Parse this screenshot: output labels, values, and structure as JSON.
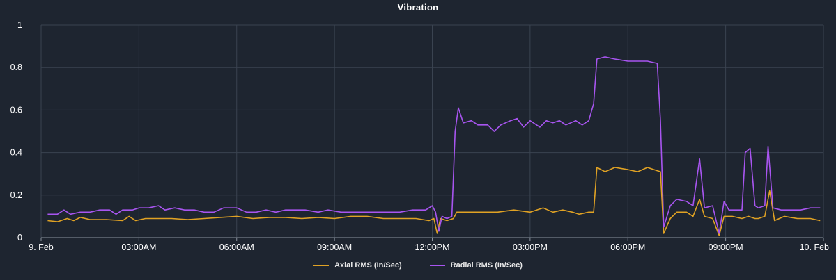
{
  "colors": {
    "background": "#1e2530",
    "grid": "#3a4350",
    "axial": "#e0a224",
    "radial": "#a855f0"
  },
  "chart_data": {
    "type": "line",
    "title": "Vibration",
    "xlabel": "",
    "ylabel": "",
    "x_unit": "hours since 9. Feb 00:00",
    "xlim": [
      0,
      24
    ],
    "ylim": [
      0,
      1
    ],
    "x_ticks": [
      {
        "value": 0,
        "label": "9. Feb"
      },
      {
        "value": 3,
        "label": "03:00AM"
      },
      {
        "value": 6,
        "label": "06:00AM"
      },
      {
        "value": 9,
        "label": "09:00AM"
      },
      {
        "value": 12,
        "label": "12:00PM"
      },
      {
        "value": 15,
        "label": "03:00PM"
      },
      {
        "value": 18,
        "label": "06:00PM"
      },
      {
        "value": 21,
        "label": "09:00PM"
      },
      {
        "value": 24,
        "label": "10. Feb"
      }
    ],
    "y_ticks": [
      {
        "value": 0,
        "label": "0"
      },
      {
        "value": 0.2,
        "label": "0.2"
      },
      {
        "value": 0.4,
        "label": "0.4"
      },
      {
        "value": 0.6,
        "label": "0.6"
      },
      {
        "value": 0.8,
        "label": "0.8"
      },
      {
        "value": 1,
        "label": "1"
      }
    ],
    "grid": true,
    "legend_position": "bottom-center",
    "series": [
      {
        "name": "Axial RMS (In/Sec)",
        "color": "#e0a224",
        "points": [
          [
            0.2,
            0.08
          ],
          [
            0.5,
            0.075
          ],
          [
            0.8,
            0.09
          ],
          [
            1.0,
            0.08
          ],
          [
            1.2,
            0.095
          ],
          [
            1.5,
            0.085
          ],
          [
            2.0,
            0.085
          ],
          [
            2.5,
            0.08
          ],
          [
            2.7,
            0.1
          ],
          [
            2.9,
            0.08
          ],
          [
            3.2,
            0.09
          ],
          [
            3.5,
            0.09
          ],
          [
            4.0,
            0.09
          ],
          [
            4.5,
            0.085
          ],
          [
            5.0,
            0.09
          ],
          [
            5.5,
            0.095
          ],
          [
            6.0,
            0.1
          ],
          [
            6.5,
            0.09
          ],
          [
            7.0,
            0.095
          ],
          [
            7.5,
            0.095
          ],
          [
            8.0,
            0.09
          ],
          [
            8.5,
            0.095
          ],
          [
            9.0,
            0.09
          ],
          [
            9.5,
            0.1
          ],
          [
            10.0,
            0.1
          ],
          [
            10.5,
            0.09
          ],
          [
            11.0,
            0.09
          ],
          [
            11.5,
            0.09
          ],
          [
            11.9,
            0.08
          ],
          [
            12.05,
            0.09
          ],
          [
            12.15,
            0.02
          ],
          [
            12.25,
            0.09
          ],
          [
            12.45,
            0.08
          ],
          [
            12.65,
            0.09
          ],
          [
            12.75,
            0.12
          ],
          [
            13.0,
            0.12
          ],
          [
            13.5,
            0.12
          ],
          [
            14.0,
            0.12
          ],
          [
            14.5,
            0.13
          ],
          [
            15.0,
            0.12
          ],
          [
            15.4,
            0.14
          ],
          [
            15.7,
            0.12
          ],
          [
            16.0,
            0.13
          ],
          [
            16.3,
            0.12
          ],
          [
            16.5,
            0.11
          ],
          [
            16.8,
            0.12
          ],
          [
            16.95,
            0.12
          ],
          [
            17.05,
            0.33
          ],
          [
            17.3,
            0.31
          ],
          [
            17.6,
            0.33
          ],
          [
            18.0,
            0.32
          ],
          [
            18.3,
            0.31
          ],
          [
            18.6,
            0.33
          ],
          [
            18.8,
            0.32
          ],
          [
            19.0,
            0.31
          ],
          [
            19.1,
            0.02
          ],
          [
            19.3,
            0.09
          ],
          [
            19.5,
            0.12
          ],
          [
            19.8,
            0.12
          ],
          [
            20.0,
            0.1
          ],
          [
            20.2,
            0.18
          ],
          [
            20.35,
            0.1
          ],
          [
            20.6,
            0.09
          ],
          [
            20.8,
            0.01
          ],
          [
            20.95,
            0.1
          ],
          [
            21.2,
            0.1
          ],
          [
            21.5,
            0.09
          ],
          [
            21.7,
            0.1
          ],
          [
            21.9,
            0.09
          ],
          [
            22.0,
            0.09
          ],
          [
            22.2,
            0.1
          ],
          [
            22.35,
            0.22
          ],
          [
            22.5,
            0.08
          ],
          [
            22.8,
            0.1
          ],
          [
            23.2,
            0.09
          ],
          [
            23.6,
            0.09
          ],
          [
            23.9,
            0.08
          ]
        ]
      },
      {
        "name": "Radial RMS (In/Sec)",
        "color": "#a855f0",
        "points": [
          [
            0.2,
            0.11
          ],
          [
            0.5,
            0.11
          ],
          [
            0.7,
            0.13
          ],
          [
            0.9,
            0.11
          ],
          [
            1.2,
            0.12
          ],
          [
            1.5,
            0.12
          ],
          [
            1.8,
            0.13
          ],
          [
            2.1,
            0.13
          ],
          [
            2.3,
            0.11
          ],
          [
            2.5,
            0.13
          ],
          [
            2.8,
            0.13
          ],
          [
            3.0,
            0.14
          ],
          [
            3.3,
            0.14
          ],
          [
            3.6,
            0.15
          ],
          [
            3.8,
            0.13
          ],
          [
            4.1,
            0.14
          ],
          [
            4.4,
            0.13
          ],
          [
            4.7,
            0.13
          ],
          [
            5.0,
            0.12
          ],
          [
            5.3,
            0.12
          ],
          [
            5.6,
            0.14
          ],
          [
            6.0,
            0.14
          ],
          [
            6.3,
            0.12
          ],
          [
            6.6,
            0.12
          ],
          [
            6.9,
            0.13
          ],
          [
            7.2,
            0.12
          ],
          [
            7.5,
            0.13
          ],
          [
            7.8,
            0.13
          ],
          [
            8.1,
            0.13
          ],
          [
            8.5,
            0.12
          ],
          [
            8.8,
            0.13
          ],
          [
            9.2,
            0.12
          ],
          [
            9.5,
            0.12
          ],
          [
            9.9,
            0.12
          ],
          [
            10.2,
            0.12
          ],
          [
            10.6,
            0.12
          ],
          [
            11.0,
            0.12
          ],
          [
            11.4,
            0.13
          ],
          [
            11.8,
            0.13
          ],
          [
            12.0,
            0.15
          ],
          [
            12.1,
            0.12
          ],
          [
            12.2,
            0.03
          ],
          [
            12.3,
            0.1
          ],
          [
            12.45,
            0.09
          ],
          [
            12.6,
            0.1
          ],
          [
            12.7,
            0.5
          ],
          [
            12.8,
            0.61
          ],
          [
            12.95,
            0.54
          ],
          [
            13.2,
            0.55
          ],
          [
            13.4,
            0.53
          ],
          [
            13.7,
            0.53
          ],
          [
            13.9,
            0.5
          ],
          [
            14.1,
            0.53
          ],
          [
            14.4,
            0.55
          ],
          [
            14.6,
            0.56
          ],
          [
            14.8,
            0.52
          ],
          [
            15.0,
            0.55
          ],
          [
            15.3,
            0.52
          ],
          [
            15.5,
            0.55
          ],
          [
            15.7,
            0.54
          ],
          [
            15.9,
            0.55
          ],
          [
            16.1,
            0.53
          ],
          [
            16.4,
            0.55
          ],
          [
            16.6,
            0.53
          ],
          [
            16.8,
            0.55
          ],
          [
            16.95,
            0.63
          ],
          [
            17.05,
            0.84
          ],
          [
            17.3,
            0.85
          ],
          [
            17.6,
            0.84
          ],
          [
            18.0,
            0.83
          ],
          [
            18.3,
            0.83
          ],
          [
            18.6,
            0.83
          ],
          [
            18.9,
            0.82
          ],
          [
            19.0,
            0.55
          ],
          [
            19.1,
            0.05
          ],
          [
            19.3,
            0.15
          ],
          [
            19.5,
            0.18
          ],
          [
            19.8,
            0.17
          ],
          [
            20.0,
            0.15
          ],
          [
            20.2,
            0.37
          ],
          [
            20.35,
            0.14
          ],
          [
            20.6,
            0.15
          ],
          [
            20.8,
            0.02
          ],
          [
            20.95,
            0.17
          ],
          [
            21.1,
            0.13
          ],
          [
            21.5,
            0.13
          ],
          [
            21.6,
            0.4
          ],
          [
            21.75,
            0.42
          ],
          [
            21.9,
            0.15
          ],
          [
            22.0,
            0.14
          ],
          [
            22.2,
            0.15
          ],
          [
            22.3,
            0.43
          ],
          [
            22.45,
            0.14
          ],
          [
            22.7,
            0.13
          ],
          [
            23.0,
            0.13
          ],
          [
            23.3,
            0.13
          ],
          [
            23.6,
            0.14
          ],
          [
            23.9,
            0.14
          ]
        ]
      }
    ]
  }
}
